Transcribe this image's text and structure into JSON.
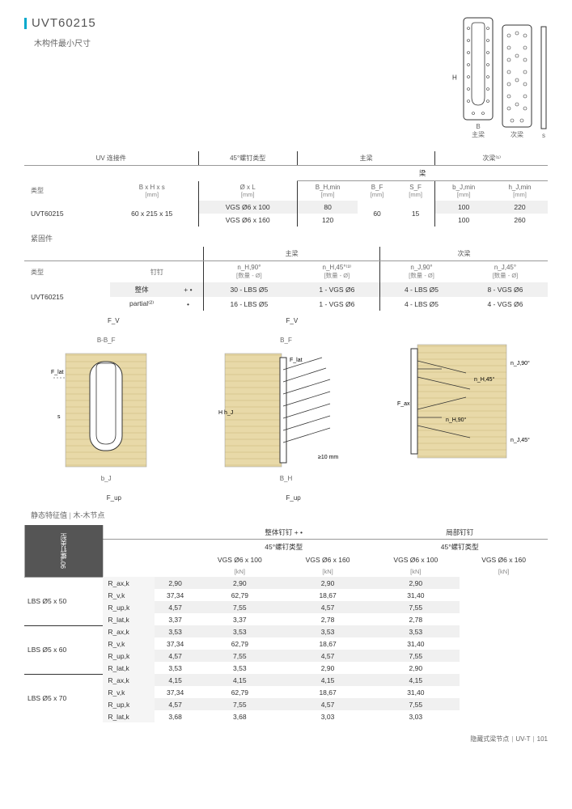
{
  "title": "UVT60215",
  "subtitle": "木构件最小尺寸",
  "bracket_labels": {
    "h": "H",
    "b1": "B",
    "b1sub": "主梁",
    "b2": "次梁",
    "s": "s"
  },
  "table1": {
    "groups": [
      "UV 连接件",
      "45°螺钉类型",
      "主梁",
      "次梁⁽¹⁾"
    ],
    "section_mid": "梁",
    "headers": [
      {
        "label": "类型",
        "col2": "B x H x s",
        "unit": "[mm]"
      },
      {
        "label": "Ø x L",
        "unit": "[mm]"
      },
      {
        "label": "B_H,min",
        "unit": "[mm]"
      },
      {
        "label": "B_F",
        "unit": "[mm]"
      },
      {
        "label": "S_F",
        "unit": "[mm]"
      },
      {
        "label": "b_J,min",
        "unit": "[mm]"
      },
      {
        "label": "h_J,min",
        "unit": "[mm]"
      }
    ],
    "rows": [
      {
        "type": "UVT60215",
        "dim": "60 x 215 x 15",
        "screw": "VGS Ø6 x 100",
        "bhmin": "80",
        "bf": "60",
        "sf": "15",
        "bjmin": "100",
        "hjmin": "220",
        "alt": true
      },
      {
        "type": "",
        "dim": "",
        "screw": "VGS Ø6 x 160",
        "bhmin": "120",
        "bf": "",
        "sf": "",
        "bjmin": "100",
        "hjmin": "260",
        "alt": false
      }
    ]
  },
  "section2_label": "紧固件",
  "table2": {
    "groups": [
      "",
      "主梁",
      "次梁"
    ],
    "headers": [
      "类型",
      "钉钉",
      "n_H,90°",
      "n_H,45°⁽³⁾",
      "n_J,90°",
      "n_J,45°"
    ],
    "unit": "[数量 - Ø]",
    "rows": [
      {
        "type": "UVT60215",
        "nail": "整体",
        "sym": "+ •",
        "h90": "30 - LBS Ø5",
        "h45": "1 - VGS Ø6",
        "j90": "4 - LBS Ø5",
        "j45": "8 - VGS Ø6",
        "alt": true
      },
      {
        "type": "",
        "nail": "partial⁽²⁾",
        "sym": "•",
        "h90": "16 - LBS Ø5",
        "h45": "1 - VGS Ø6",
        "j90": "4 - LBS Ø5",
        "j45": "4 - VGS Ø6",
        "alt": false
      }
    ]
  },
  "diagram_labels": {
    "fv": "F_V",
    "flat": "F_lat",
    "fup": "F_up",
    "b_bf": "B-B_F",
    "bf": "B_F",
    "s": "s",
    "bj": "b_J",
    "bh": "B_H",
    "h": "H",
    "hj": "h_J",
    "fax": "F_ax",
    "nh90": "n_H,90°",
    "nh45": "n_H,45°",
    "nj90": "n_J,90°",
    "nj45": "n_J,45°",
    "gap": "≥10 mm"
  },
  "static_title": "静态特征值",
  "static_sub": "木-木节点",
  "table3": {
    "grp1": "整体钉钉  + •",
    "grp2": "局部钉钉",
    "sub": "45°螺钉类型",
    "cols": [
      "VGS Ø6 x 100",
      "VGS Ø6 x 160",
      "VGS Ø6 x 100",
      "VGS Ø6 x 160"
    ],
    "unit": "[kN]",
    "vlabel": "90°螺钉类型",
    "blocks": [
      {
        "lbs": "LBS Ø5 x 50",
        "rows": [
          {
            "r": "R_ax,k",
            "v": [
              "2,90",
              "2,90",
              "2,90",
              "2,90"
            ],
            "alt": true
          },
          {
            "r": "R_v,k",
            "v": [
              "37,34",
              "62,79",
              "18,67",
              "31,40"
            ],
            "alt": false
          },
          {
            "r": "R_up,k",
            "v": [
              "4,57",
              "7,55",
              "4,57",
              "7,55"
            ],
            "alt": true
          },
          {
            "r": "R_lat,k",
            "v": [
              "3,37",
              "3,37",
              "2,78",
              "2,78"
            ],
            "alt": false
          }
        ]
      },
      {
        "lbs": "LBS Ø5 x 60",
        "rows": [
          {
            "r": "R_ax,k",
            "v": [
              "3,53",
              "3,53",
              "3,53",
              "3,53"
            ],
            "alt": true
          },
          {
            "r": "R_v,k",
            "v": [
              "37,34",
              "62,79",
              "18,67",
              "31,40"
            ],
            "alt": false
          },
          {
            "r": "R_up,k",
            "v": [
              "4,57",
              "7,55",
              "4,57",
              "7,55"
            ],
            "alt": true
          },
          {
            "r": "R_lat,k",
            "v": [
              "3,53",
              "3,53",
              "2,90",
              "2,90"
            ],
            "alt": false
          }
        ]
      },
      {
        "lbs": "LBS Ø5 x 70",
        "rows": [
          {
            "r": "R_ax,k",
            "v": [
              "4,15",
              "4,15",
              "4,15",
              "4,15"
            ],
            "alt": true
          },
          {
            "r": "R_v,k",
            "v": [
              "37,34",
              "62,79",
              "18,67",
              "31,40"
            ],
            "alt": false
          },
          {
            "r": "R_up,k",
            "v": [
              "4,57",
              "7,55",
              "4,57",
              "7,55"
            ],
            "alt": true
          },
          {
            "r": "R_lat,k",
            "v": [
              "3,68",
              "3,68",
              "3,03",
              "3,03"
            ],
            "alt": false
          }
        ]
      }
    ]
  },
  "footer": {
    "text1": "隐藏式梁节点",
    "text2": "UV-T",
    "page": "101"
  },
  "colors": {
    "accent": "#00a8cc",
    "wood": "#e8d9a8",
    "wood_line": "#c9b878",
    "grey_bg": "#f0f0f0",
    "grey_light": "#f5f5f5",
    "dark": "#555555"
  }
}
